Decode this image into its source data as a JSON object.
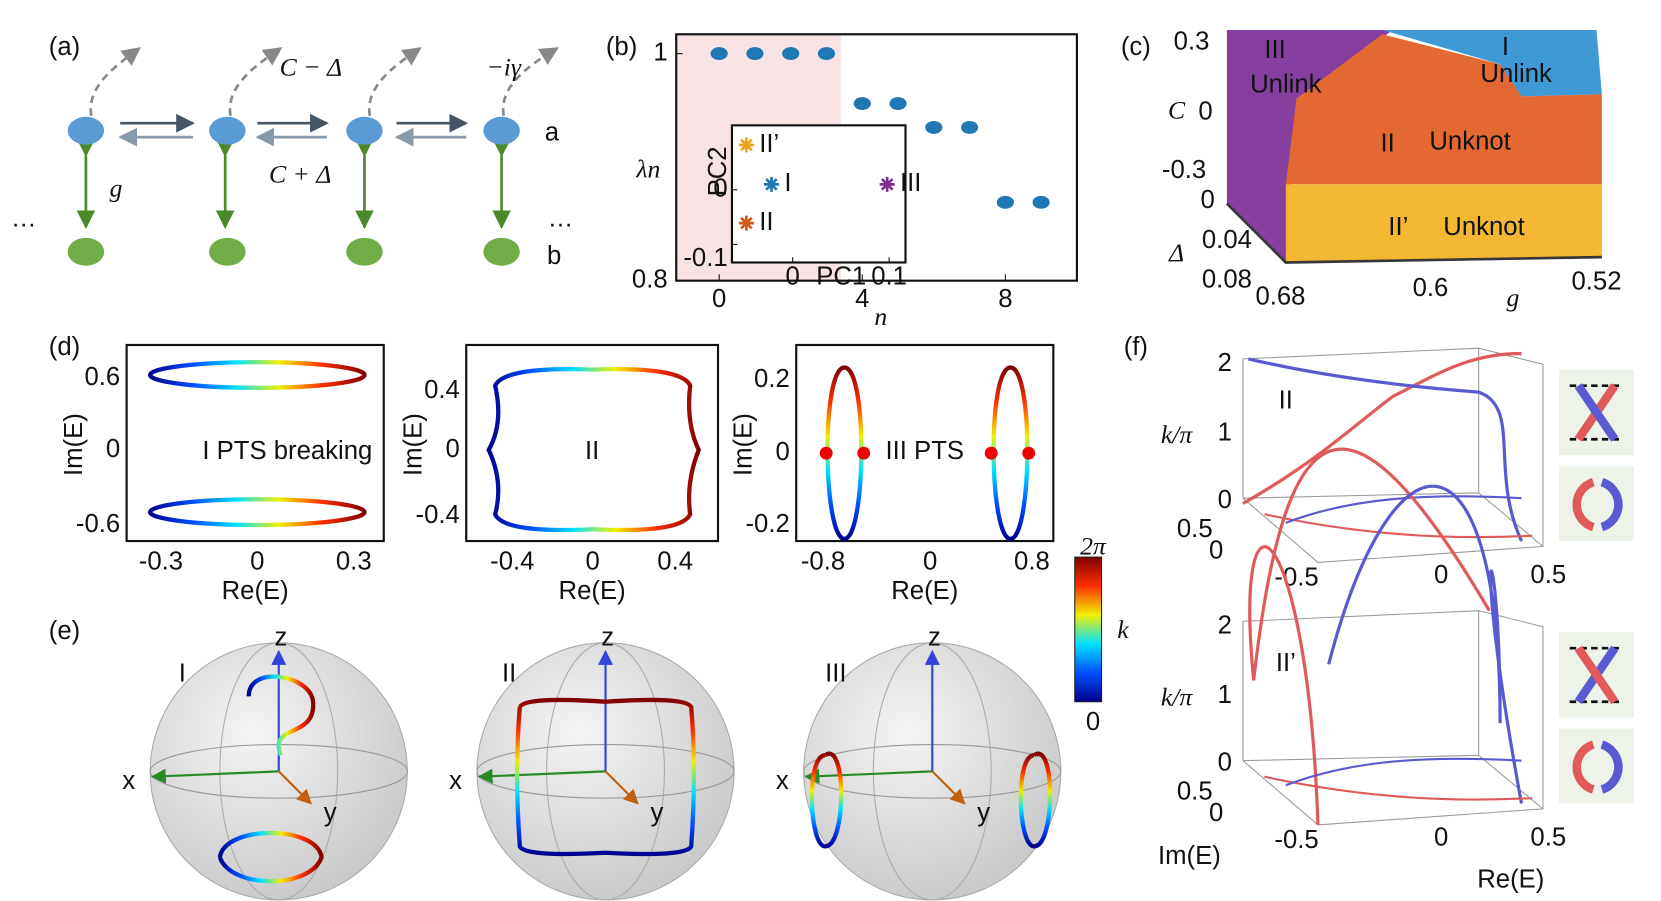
{
  "panel_a": {
    "texts": [
      "(a)",
      "C − Δ",
      "C + Δ",
      "−iγ",
      "g",
      "a",
      "b",
      "…",
      "…"
    ]
  },
  "chart_data": [
    {
      "type": "scatter",
      "panel_label": "(b)",
      "x_label": "n",
      "y_label": "λn",
      "x": [
        0,
        1,
        2,
        3,
        4,
        5,
        6,
        7,
        8,
        9
      ],
      "values": [
        1,
        1,
        1,
        1,
        0.956,
        0.956,
        0.935,
        0.935,
        0.869,
        0.869
      ],
      "color": "#1f77b4",
      "xlim": [
        -1.2,
        10
      ],
      "ylim": [
        0.8,
        1.017
      ],
      "xticks": [
        0,
        4,
        8
      ],
      "yticks": [
        0.8,
        1
      ]
    },
    {
      "type": "scatter",
      "x_label": "PC1",
      "y_label": "PC2",
      "series": [
        {
          "name": "II’",
          "color": "#e8a317",
          "x": [
            -0.048
          ],
          "values": [
            0.082
          ]
        },
        {
          "name": "I",
          "color": "#1f77b4",
          "x": [
            -0.022
          ],
          "values": [
            0.01
          ]
        },
        {
          "name": "II",
          "color": "#d2581b",
          "x": [
            -0.048
          ],
          "values": [
            -0.061
          ]
        },
        {
          "name": "III",
          "color": "#7e2f8e",
          "x": [
            0.098
          ],
          "values": [
            0.01
          ]
        }
      ],
      "xlim": [
        -0.063,
        0.117
      ],
      "ylim": [
        -0.133,
        0.118
      ],
      "xticks": [
        0,
        0.1
      ],
      "yticks": [
        0,
        -0.1
      ]
    }
  ],
  "panel_c": {
    "texts": [
      "(c)",
      "0.3",
      "C",
      "0",
      "-0.3",
      "0",
      "Δ",
      "0.04",
      "0.08",
      "0.68",
      "0.6",
      "g",
      "0.52",
      "III",
      "Unlink",
      "I",
      "Unlink",
      "II",
      "Unknot",
      "II’",
      "Unknot"
    ]
  },
  "panel_d": {
    "label": "(d)",
    "plots": [
      {
        "yticks": [
          "0.6",
          "0",
          "-0.6"
        ],
        "xticks": [
          "-0.3",
          "0",
          "0.3"
        ],
        "x_label": "Re(E)",
        "y_label": "Im(E)",
        "annotation": "I PTS breaking"
      },
      {
        "yticks": [
          "0.4",
          "0",
          "-0.4"
        ],
        "xticks": [
          "-0.4",
          "0",
          "0.4"
        ],
        "x_label": "Re(E)",
        "y_label": "Im(E)",
        "annotation": "II"
      },
      {
        "yticks": [
          "0.2",
          "0",
          "-0.2"
        ],
        "xticks": [
          "-0.8",
          "0",
          "0.8"
        ],
        "x_label": "Re(E)",
        "y_label": "Im(E)",
        "annotation": "III PTS"
      }
    ]
  },
  "colorbar": {
    "max": "2π",
    "label": "k",
    "min": "0"
  },
  "panel_e": {
    "label": "(e)",
    "spheres": [
      {
        "name": "I",
        "axes": [
          "z",
          "x",
          "y"
        ]
      },
      {
        "name": "II",
        "axes": [
          "z",
          "x",
          "y"
        ]
      },
      {
        "name": "III",
        "axes": [
          "z",
          "x",
          "y"
        ]
      }
    ]
  },
  "panel_f": {
    "label": "(f)",
    "plots": [
      {
        "name": "II",
        "y_label": "k/π",
        "zticks": [
          "2",
          "1",
          "0"
        ],
        "im_ticks": [
          "0.5",
          "0",
          "-0.5"
        ],
        "re_ticks": [
          "0",
          "0.5"
        ]
      },
      {
        "name": "II’",
        "y_label": "k/π",
        "zticks": [
          "2",
          "1",
          "0"
        ],
        "im_ticks": [
          "0.5",
          "0",
          "-0.5"
        ],
        "re_ticks": [
          "0",
          "0.5"
        ],
        "im_label": "Im(E)",
        "re_label": "Re(E)"
      }
    ]
  }
}
